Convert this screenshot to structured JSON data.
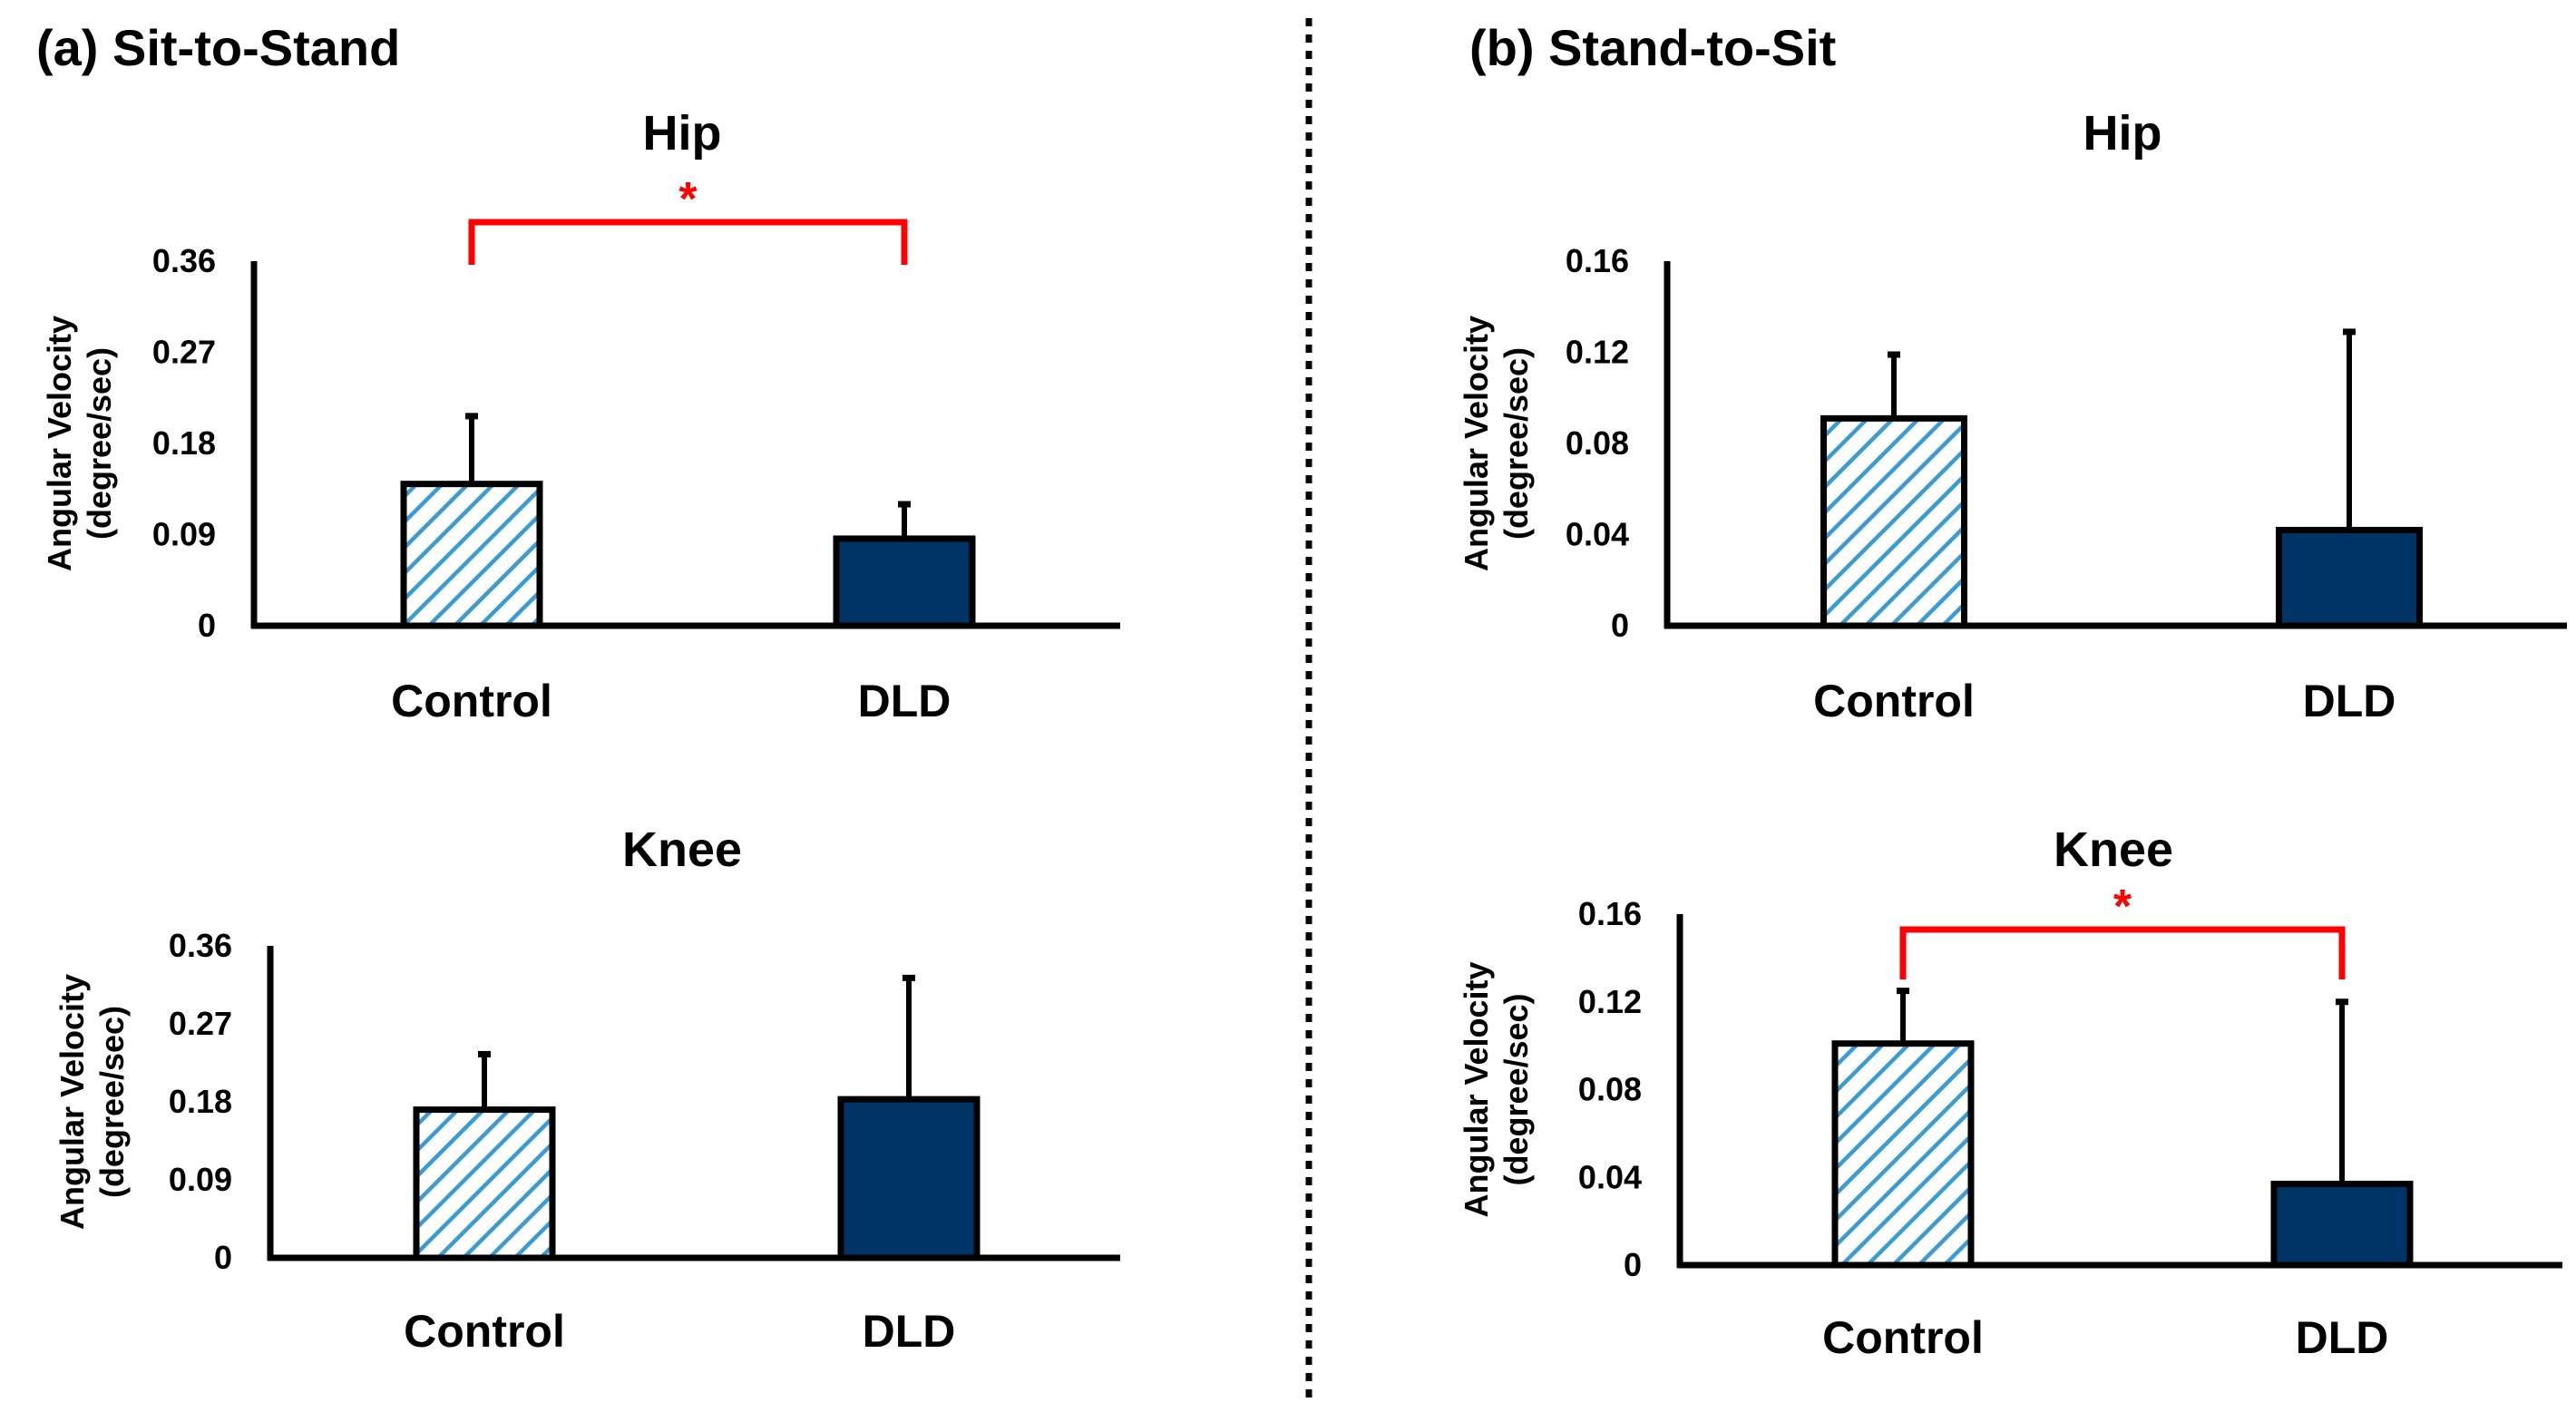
{
  "panels": [
    {
      "label": "(a) Sit-to-Stand"
    },
    {
      "label": "(b) Stand-to-Sit"
    }
  ],
  "colors": {
    "control_stripe": "#3a9bd5",
    "dld_fill": "#003366",
    "significance": "#ff0000",
    "axis": "#000000"
  },
  "chart_data": [
    {
      "type": "bar",
      "panel": "(a) Sit-to-Stand",
      "title": "Hip",
      "ylabel_line1": "Angular Velocity",
      "ylabel_line2": "(degree/sec)",
      "categories": [
        "Control",
        "DLD"
      ],
      "values": [
        0.14,
        0.086
      ],
      "errors": [
        0.067,
        0.034
      ],
      "yticks": [
        "0",
        "0.09",
        "0.18",
        "0.27",
        "0.36"
      ],
      "ylim": [
        0,
        0.36
      ],
      "significance": {
        "label": "*"
      },
      "grid": false,
      "legend": "none"
    },
    {
      "type": "bar",
      "panel": "(a) Sit-to-Stand",
      "title": "Knee",
      "ylabel_line1": "Angular Velocity",
      "ylabel_line2": "(degree/sec)",
      "categories": [
        "Control",
        "DLD"
      ],
      "values": [
        0.171,
        0.183
      ],
      "errors": [
        0.064,
        0.14
      ],
      "yticks": [
        "0",
        "0.09",
        "0.18",
        "0.27",
        "0.36"
      ],
      "ylim": [
        0,
        0.36
      ],
      "significance": null,
      "grid": false,
      "legend": "none"
    },
    {
      "type": "bar",
      "panel": "(b) Stand-to-Sit",
      "title": "Hip",
      "ylabel_line1": "Angular Velocity",
      "ylabel_line2": "(degree/sec)",
      "categories": [
        "Control",
        "DLD"
      ],
      "values": [
        0.091,
        0.042
      ],
      "errors": [
        0.028,
        0.087
      ],
      "yticks": [
        "0",
        "0.04",
        "0.08",
        "0.12",
        "0.16"
      ],
      "ylim": [
        0,
        0.16
      ],
      "significance": null,
      "grid": false,
      "legend": "none"
    },
    {
      "type": "bar",
      "panel": "(b) Stand-to-Sit",
      "title": "Knee",
      "ylabel_line1": "Angular Velocity",
      "ylabel_line2": "(degree/sec)",
      "categories": [
        "Control",
        "DLD"
      ],
      "values": [
        0.101,
        0.037
      ],
      "errors": [
        0.024,
        0.083
      ],
      "yticks": [
        "0",
        "0.04",
        "0.08",
        "0.12",
        "0.16"
      ],
      "ylim": [
        0,
        0.16
      ],
      "significance": {
        "label": "*"
      },
      "grid": false,
      "legend": "none"
    }
  ]
}
